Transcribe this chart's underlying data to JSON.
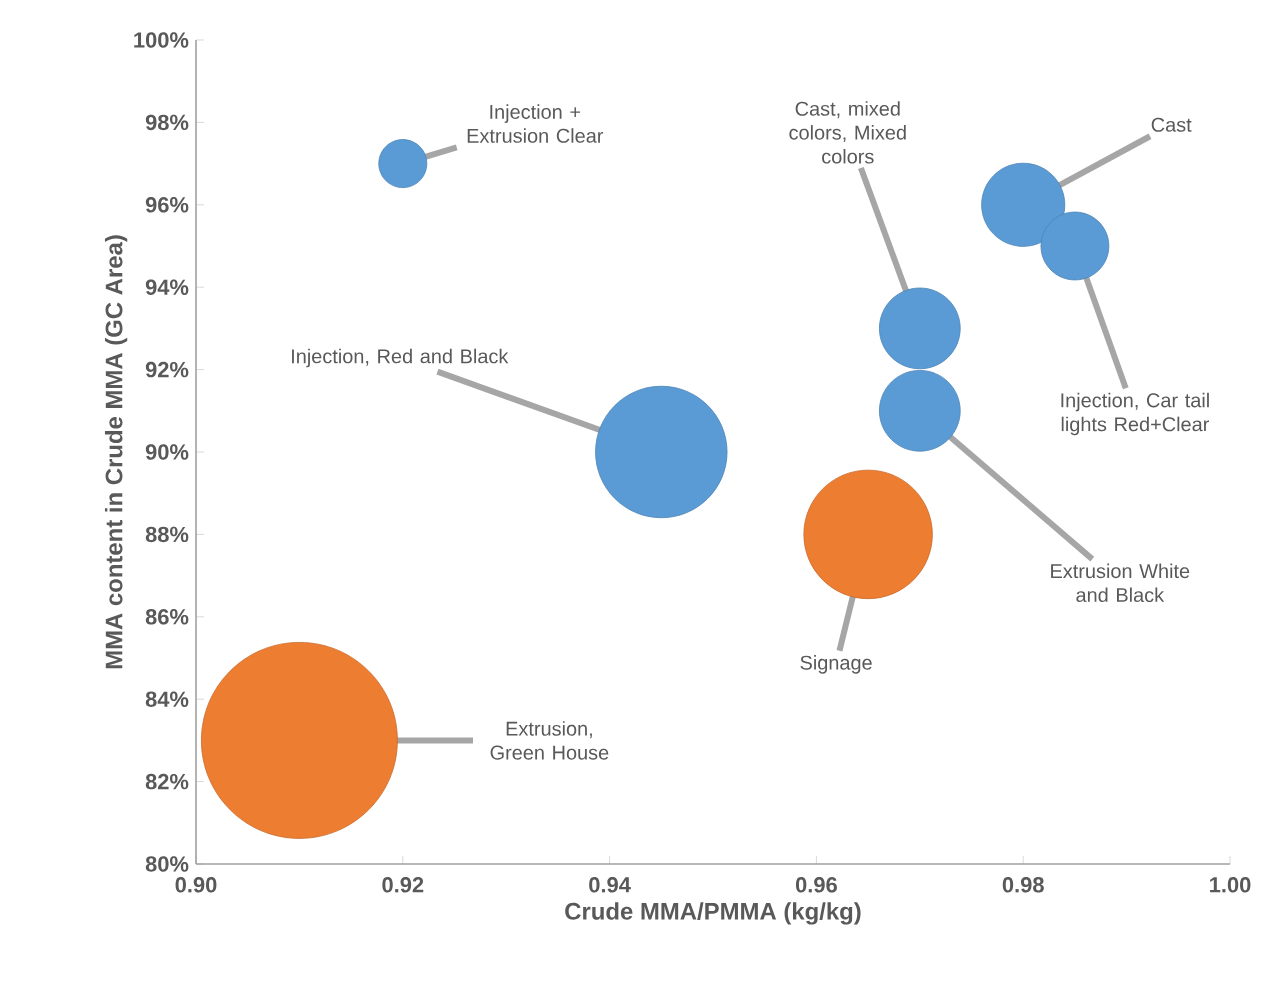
{
  "chart_data": {
    "type": "bubble",
    "xlabel": "Crude MMA/PMMA (kg/kg)",
    "ylabel": "MMA content in Crude MMA (GC Area)",
    "x": [
      0.92,
      0.945,
      0.97,
      0.97,
      0.98,
      0.985,
      0.965,
      0.91
    ],
    "values": [
      97,
      90,
      93,
      91,
      96,
      95,
      88,
      83
    ],
    "sizes": [
      0.06,
      0.45,
      0.17,
      0.17,
      0.18,
      0.12,
      0.43,
      1
    ],
    "colors": [
      "#5b9bd5",
      "#5b9bd5",
      "#5b9bd5",
      "#5b9bd5",
      "#5b9bd5",
      "#5b9bd5",
      "#ed7d31",
      "#ed7d31"
    ],
    "xlim": [
      0.9,
      1.0
    ],
    "xticks": [
      {
        "value": 0.9,
        "label": "0.90"
      },
      {
        "value": 0.92,
        "label": "0.92"
      },
      {
        "value": 0.94,
        "label": "0.94"
      },
      {
        "value": 0.96,
        "label": "0.96"
      },
      {
        "value": 0.98,
        "label": "0.98"
      },
      {
        "value": 1.0,
        "label": "1.00"
      }
    ],
    "ylim": [
      80,
      100
    ],
    "yticks": [
      {
        "value": 80,
        "label": "80%"
      },
      {
        "value": 82,
        "label": "82%"
      },
      {
        "value": 84,
        "label": "84%"
      },
      {
        "value": 86,
        "label": "86%"
      },
      {
        "value": 88,
        "label": "88%"
      },
      {
        "value": 90,
        "label": "90%"
      },
      {
        "value": 92,
        "label": "92%"
      },
      {
        "value": 94,
        "label": "94%"
      },
      {
        "value": 96,
        "label": "96%"
      },
      {
        "value": 98,
        "label": "98%"
      },
      {
        "value": 100,
        "label": "100%"
      }
    ],
    "annotations": [
      {
        "text": "Injection + Extrusion Clear",
        "x": 0.92,
        "y": 97
      },
      {
        "text": "Injection, Red and Black",
        "x": 0.945,
        "y": 90
      },
      {
        "text": "Cast, mixed colors, Mixed colors",
        "x": 0.97,
        "y": 93
      },
      {
        "text": "Extrusion White and Black",
        "x": 0.97,
        "y": 91
      },
      {
        "text": "Cast",
        "x": 0.98,
        "y": 96
      },
      {
        "text": "Injection, Car tail lights Red+Clear",
        "x": 0.985,
        "y": 95
      },
      {
        "text": "Signage",
        "x": 0.965,
        "y": 88
      },
      {
        "text": "Extrusion, Green House",
        "x": 0.91,
        "y": 83
      }
    ]
  }
}
